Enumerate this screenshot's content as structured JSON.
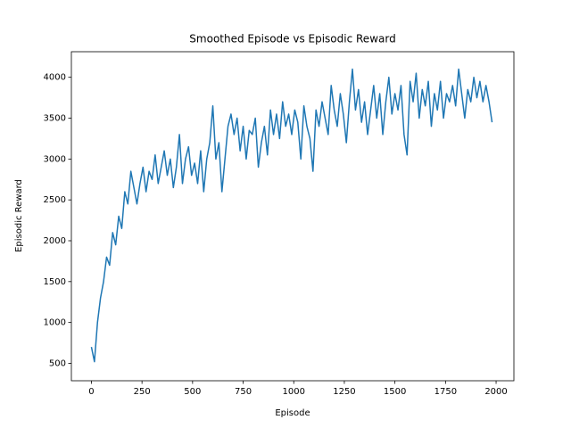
{
  "chart_data": {
    "type": "line",
    "title": "Smoothed Episode vs Episodic Reward",
    "x_label": "Episode",
    "y_label": "Episodic Reward",
    "x": [
      0,
      15,
      30,
      45,
      60,
      75,
      90,
      105,
      120,
      135,
      150,
      165,
      180,
      195,
      210,
      225,
      240,
      255,
      270,
      285,
      300,
      315,
      330,
      345,
      360,
      375,
      390,
      405,
      420,
      435,
      450,
      465,
      480,
      495,
      510,
      525,
      540,
      555,
      570,
      585,
      600,
      615,
      630,
      645,
      660,
      675,
      690,
      705,
      720,
      735,
      750,
      765,
      780,
      795,
      810,
      825,
      840,
      855,
      870,
      885,
      900,
      915,
      930,
      945,
      960,
      975,
      990,
      1005,
      1020,
      1035,
      1050,
      1065,
      1080,
      1095,
      1110,
      1125,
      1140,
      1155,
      1170,
      1185,
      1200,
      1215,
      1230,
      1245,
      1260,
      1275,
      1290,
      1305,
      1320,
      1335,
      1350,
      1365,
      1380,
      1395,
      1410,
      1425,
      1440,
      1455,
      1470,
      1485,
      1500,
      1515,
      1530,
      1545,
      1560,
      1575,
      1590,
      1605,
      1620,
      1635,
      1650,
      1665,
      1680,
      1695,
      1710,
      1725,
      1740,
      1755,
      1770,
      1785,
      1800,
      1815,
      1830,
      1845,
      1860,
      1875,
      1890,
      1905,
      1920,
      1935,
      1950,
      1965,
      1980
    ],
    "series": [
      {
        "name": "Episodic Reward",
        "color": "#1f77b4",
        "values": [
          700,
          520,
          1000,
          1300,
          1500,
          1800,
          1700,
          2100,
          1950,
          2300,
          2150,
          2600,
          2450,
          2850,
          2650,
          2450,
          2700,
          2900,
          2600,
          2850,
          2750,
          3050,
          2700,
          2900,
          3100,
          2800,
          3000,
          2650,
          2900,
          3300,
          2700,
          3000,
          3150,
          2800,
          2950,
          2700,
          3100,
          2600,
          3000,
          3200,
          3650,
          3000,
          3200,
          2600,
          3000,
          3400,
          3550,
          3300,
          3500,
          3100,
          3400,
          3000,
          3350,
          3300,
          3500,
          2900,
          3200,
          3400,
          3050,
          3600,
          3300,
          3550,
          3250,
          3700,
          3400,
          3550,
          3300,
          3600,
          3450,
          3000,
          3650,
          3400,
          3250,
          2850,
          3600,
          3400,
          3700,
          3500,
          3300,
          3900,
          3600,
          3400,
          3800,
          3550,
          3200,
          3700,
          4100,
          3600,
          3850,
          3450,
          3700,
          3300,
          3600,
          3900,
          3500,
          3800,
          3300,
          3700,
          4000,
          3550,
          3800,
          3600,
          3900,
          3300,
          3050,
          3950,
          3700,
          4050,
          3500,
          3850,
          3650,
          3950,
          3400,
          3800,
          3600,
          3950,
          3500,
          3800,
          3700,
          3900,
          3650,
          4100,
          3800,
          3500,
          3850,
          3700,
          4000,
          3750,
          3950,
          3700,
          3900,
          3700,
          3450
        ]
      }
    ],
    "xlim": [
      -99,
      2088
    ],
    "ylim": [
      287,
      4313
    ],
    "xticks": [
      0,
      250,
      500,
      750,
      1000,
      1250,
      1500,
      1750,
      2000
    ],
    "yticks": [
      500,
      1000,
      1500,
      2000,
      2500,
      3000,
      3500,
      4000
    ]
  }
}
